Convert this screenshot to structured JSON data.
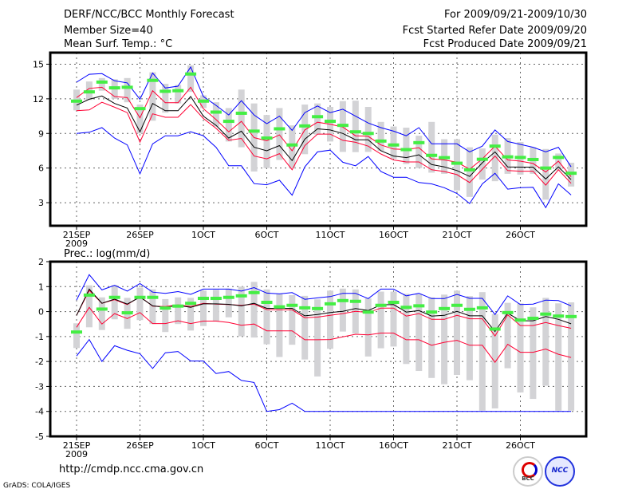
{
  "header": {
    "title": "DERF/NCC/BCC Monthly Forecast",
    "member_size": "Member Size=40",
    "variable": "Mean Surf. Temp.: °C",
    "period": "For 2009/09/21-2009/10/30",
    "started": "Fcst Started Refer Date 2009/09/20",
    "produced": "Fcst Produced Date 2009/09/21"
  },
  "footer": {
    "url": "http://cmdp.ncc.cma.gov.cn",
    "grads": "GrADS: COLA/IGES",
    "logo_bcc": "BCC",
    "logo_ncc": "NCC"
  },
  "colors": {
    "max_min": "#0000ff",
    "spread": "#ff0033",
    "median": "#000000",
    "mean": "#44ee44",
    "box": "#d3d3d6"
  },
  "chart_data": [
    {
      "type": "line",
      "title": "Mean Surf. Temp.: °C",
      "ylabel": "°C",
      "ylim": [
        1,
        16
      ],
      "yticks": [
        "3",
        "6",
        "9",
        "12",
        "15"
      ],
      "ytick_values": [
        3,
        6,
        9,
        12,
        15
      ],
      "xtick_labels": [
        "21SEP",
        "26SEP",
        "1OCT",
        "6OCT",
        "11OCT",
        "16OCT",
        "21OCT",
        "26OCT"
      ],
      "xtick_days": [
        0,
        5,
        10,
        15,
        20,
        25,
        30,
        35
      ],
      "xyear": "2009",
      "grid": true,
      "days": 40,
      "series": {
        "max": [
          13.44,
          14.13,
          14.18,
          13.56,
          13.38,
          11.96,
          14.24,
          12.94,
          13.1,
          14.75,
          12.2,
          11.43,
          10.6,
          11.84,
          10.6,
          9.85,
          10.5,
          9.26,
          10.8,
          11.38,
          10.8,
          11.1,
          10.5,
          9.9,
          9.5,
          9.2,
          8.8,
          9.5,
          8.1,
          8.1,
          8.1,
          7.4,
          7.9,
          9.3,
          8.3,
          8.05,
          7.8,
          7.4,
          7.8,
          6.1
        ],
        "upper": [
          12.1,
          12.9,
          13.0,
          12.2,
          12.1,
          10.35,
          12.7,
          11.66,
          11.66,
          13.0,
          11.15,
          10.2,
          9.14,
          10.05,
          8.64,
          8.36,
          8.87,
          7.5,
          9.3,
          9.97,
          9.8,
          9.55,
          8.8,
          8.75,
          8.0,
          7.65,
          7.6,
          7.77,
          6.8,
          6.7,
          6.5,
          5.9,
          6.8,
          7.9,
          6.7,
          6.6,
          6.4,
          5.66,
          6.6,
          5.25
        ],
        "median": [
          11.45,
          11.96,
          12.25,
          11.6,
          11.2,
          9.14,
          11.6,
          10.97,
          10.97,
          12.2,
          10.5,
          9.7,
          8.6,
          9.2,
          7.8,
          7.5,
          7.95,
          6.65,
          8.5,
          9.4,
          9.3,
          9.0,
          8.45,
          8.45,
          7.5,
          7.04,
          6.9,
          7.15,
          6.3,
          6.1,
          5.78,
          5.27,
          6.46,
          7.4,
          6.1,
          6.08,
          6.08,
          5.05,
          6.1,
          5.0
        ],
        "lower": [
          10.97,
          11.04,
          11.7,
          11.27,
          10.8,
          8.25,
          10.7,
          10.4,
          10.4,
          11.5,
          10.3,
          9.44,
          8.4,
          8.57,
          7.04,
          6.8,
          7.25,
          5.85,
          7.95,
          8.94,
          8.94,
          8.4,
          8.23,
          7.9,
          7.22,
          6.7,
          6.53,
          6.53,
          5.85,
          5.7,
          5.43,
          4.75,
          5.9,
          7.04,
          5.78,
          5.73,
          5.73,
          4.52,
          5.85,
          4.68
        ],
        "min": [
          9.0,
          9.1,
          9.5,
          8.6,
          8.0,
          5.5,
          8.1,
          8.8,
          8.8,
          9.15,
          8.8,
          7.8,
          6.2,
          6.2,
          4.65,
          4.55,
          4.95,
          3.65,
          6.1,
          7.4,
          7.55,
          6.5,
          6.2,
          7.0,
          5.7,
          5.2,
          5.2,
          4.75,
          4.63,
          4.3,
          3.8,
          2.93,
          4.63,
          5.55,
          4.17,
          4.3,
          4.33,
          2.57,
          4.63,
          3.67
        ],
        "mean": [
          11.8,
          12.6,
          13.45,
          12.95,
          13.0,
          11.15,
          13.6,
          12.65,
          12.7,
          14.15,
          11.8,
          10.85,
          10.05,
          10.75,
          9.2,
          8.6,
          9.4,
          8.0,
          9.65,
          10.45,
          10.05,
          9.7,
          9.14,
          9.0,
          8.34,
          8.0,
          7.6,
          8.2,
          7.1,
          6.9,
          6.42,
          5.85,
          6.76,
          7.9,
          6.97,
          6.92,
          6.74,
          6.0,
          6.92,
          5.55
        ],
        "box_hi": [
          12.8,
          13.5,
          13.8,
          13.7,
          13.8,
          11.5,
          14.3,
          13.3,
          13.2,
          14.9,
          12.3,
          11.7,
          11.2,
          12.8,
          11.6,
          10.6,
          11.2,
          9.7,
          11.5,
          11.6,
          11.3,
          11.8,
          11.84,
          11.3,
          10.0,
          9.6,
          9.5,
          8.8,
          10.0,
          8.5,
          8.5,
          7.8,
          7.7,
          8.9,
          8.6,
          8.25,
          7.8,
          7.65,
          7.26,
          6.46
        ],
        "box_lo": [
          11.0,
          11.9,
          12.7,
          12.0,
          11.7,
          9.0,
          10.1,
          10.8,
          11.6,
          12.6,
          11.2,
          9.6,
          8.3,
          7.8,
          5.7,
          6.0,
          6.7,
          6.0,
          7.2,
          8.9,
          8.3,
          7.4,
          7.38,
          7.4,
          7.5,
          6.8,
          6.35,
          6.0,
          5.6,
          5.5,
          4.06,
          3.5,
          5.0,
          4.86,
          5.5,
          5.43,
          5.5,
          3.26,
          5.8,
          4.4
        ]
      }
    },
    {
      "type": "line",
      "title": "Prec.: log(mm/d)",
      "ylabel": "log(mm/d)",
      "ylim": [
        -5,
        2
      ],
      "yticks": [
        "-5",
        "-4",
        "-3",
        "-2",
        "-1",
        "0",
        "1",
        "2"
      ],
      "ytick_values": [
        -5,
        -4,
        -3,
        -2,
        -1,
        0,
        1,
        2
      ],
      "xtick_labels": [
        "21SEP",
        "26SEP",
        "1OCT",
        "6OCT",
        "11OCT",
        "16OCT",
        "21OCT",
        "26OCT"
      ],
      "xtick_days": [
        0,
        5,
        10,
        15,
        20,
        25,
        30,
        35
      ],
      "xyear": "2009",
      "grid": true,
      "days": 40,
      "series": {
        "max": [
          0.46,
          1.48,
          0.87,
          1.05,
          0.82,
          1.12,
          0.78,
          0.73,
          0.8,
          0.69,
          0.9,
          0.9,
          0.9,
          0.82,
          0.96,
          0.74,
          0.71,
          0.76,
          0.49,
          0.55,
          0.6,
          0.73,
          0.73,
          0.52,
          0.9,
          0.9,
          0.63,
          0.73,
          0.52,
          0.52,
          0.69,
          0.53,
          0.53,
          -0.12,
          0.63,
          0.28,
          0.3,
          0.46,
          0.44,
          0.23
        ],
        "upper": [
          -0.15,
          0.85,
          0.33,
          0.48,
          0.28,
          0.6,
          0.22,
          0.2,
          0.27,
          0.2,
          0.33,
          0.3,
          0.28,
          0.25,
          0.3,
          0.08,
          0.07,
          0.07,
          -0.25,
          -0.22,
          -0.15,
          -0.08,
          0.01,
          -0.04,
          0.14,
          0.14,
          -0.18,
          -0.08,
          -0.31,
          -0.31,
          -0.15,
          -0.29,
          -0.29,
          -0.98,
          -0.13,
          -0.56,
          -0.56,
          -0.44,
          -0.56,
          -0.67
        ],
        "median": [
          -0.15,
          0.9,
          0.33,
          0.5,
          0.3,
          0.58,
          0.23,
          0.17,
          0.25,
          0.17,
          0.31,
          0.31,
          0.29,
          0.23,
          0.33,
          0.13,
          0.13,
          0.13,
          -0.17,
          -0.12,
          -0.04,
          0.01,
          0.12,
          0.04,
          0.27,
          0.28,
          -0.02,
          0.04,
          -0.18,
          -0.15,
          0.01,
          -0.17,
          -0.17,
          -0.8,
          -0.06,
          -0.37,
          -0.37,
          -0.2,
          -0.31,
          -0.49
        ],
        "lower": [
          -0.63,
          0.17,
          -0.5,
          -0.08,
          -0.28,
          -0.04,
          -0.48,
          -0.48,
          -0.37,
          -0.48,
          -0.38,
          -0.38,
          -0.44,
          -0.55,
          -0.5,
          -0.77,
          -0.77,
          -0.77,
          -1.13,
          -1.13,
          -1.12,
          -1.01,
          -0.91,
          -0.93,
          -0.86,
          -0.86,
          -1.13,
          -1.13,
          -1.35,
          -1.23,
          -1.15,
          -1.35,
          -1.35,
          -2.03,
          -1.31,
          -1.63,
          -1.63,
          -1.5,
          -1.71,
          -1.84
        ],
        "min": [
          -1.78,
          -1.12,
          -2.0,
          -1.37,
          -1.55,
          -1.69,
          -2.28,
          -1.65,
          -1.6,
          -1.98,
          -1.98,
          -2.48,
          -2.4,
          -2.76,
          -2.84,
          -4.0,
          -3.93,
          -3.67,
          -4.0,
          -4.0,
          -4.0,
          -4.0,
          -4.0,
          -4.0,
          -4.0,
          -4.0,
          -4.0,
          -4.0,
          -4.0,
          -4.0,
          -4.0,
          -4.0,
          -4.0,
          -4.0,
          -4.0,
          -4.0,
          -4.0,
          -4.0,
          -4.0,
          -4.0
        ],
        "mean": [
          -0.82,
          0.66,
          0.1,
          0.57,
          -0.05,
          0.57,
          0.57,
          0.14,
          0.22,
          0.33,
          0.53,
          0.53,
          0.57,
          0.63,
          0.76,
          0.37,
          0.19,
          0.25,
          0.15,
          0.12,
          0.31,
          0.44,
          0.41,
          -0.02,
          0.25,
          0.37,
          0.17,
          0.23,
          -0.02,
          0.12,
          0.25,
          0.09,
          0.15,
          -0.7,
          -0.04,
          -0.34,
          -0.27,
          -0.1,
          -0.18,
          -0.2
        ],
        "box_hi": [
          -0.47,
          1.05,
          0.57,
          1.06,
          0.55,
          0.96,
          0.89,
          0.5,
          0.57,
          0.55,
          0.84,
          0.87,
          0.92,
          1.0,
          1.19,
          0.89,
          0.71,
          0.66,
          0.63,
          0.49,
          0.84,
          0.92,
          0.89,
          0.53,
          0.8,
          0.8,
          0.71,
          0.69,
          0.57,
          0.68,
          0.84,
          0.62,
          0.78,
          -0.1,
          0.35,
          0.33,
          0.17,
          0.55,
          0.33,
          0.37
        ],
        "box_lo": [
          -1.46,
          -0.63,
          -0.74,
          -0.31,
          -0.69,
          -0.34,
          -0.5,
          -0.82,
          -0.5,
          -0.76,
          -0.58,
          -0.4,
          -0.23,
          -0.99,
          -1.04,
          -1.31,
          -1.82,
          -1.33,
          -1.92,
          -2.6,
          -1.49,
          -0.8,
          -0.88,
          -1.8,
          -1.47,
          -1.4,
          -2.1,
          -2.38,
          -2.66,
          -2.91,
          -2.54,
          -2.75,
          -3.97,
          -3.88,
          -2.27,
          -3.24,
          -3.5,
          -2.97,
          -3.97,
          -3.97
        ]
      }
    }
  ]
}
